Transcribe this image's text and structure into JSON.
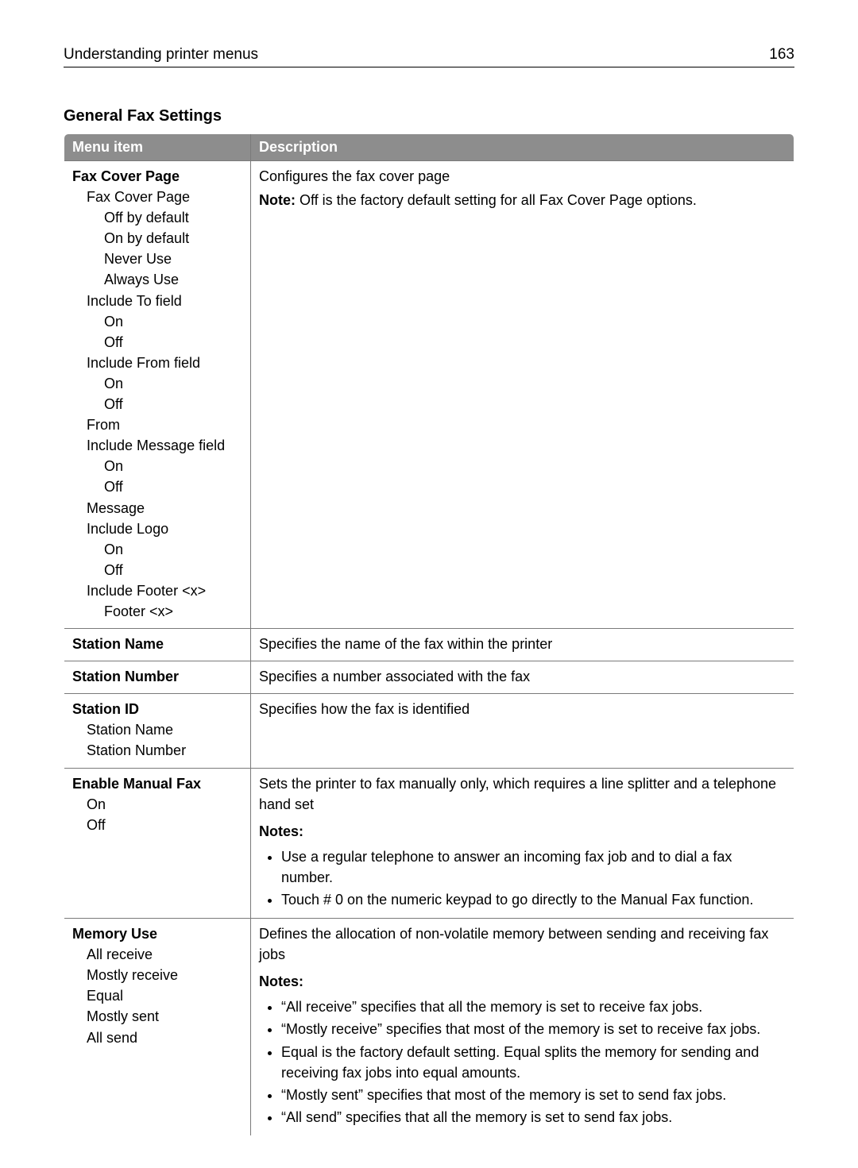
{
  "header": {
    "title": "Understanding printer menus",
    "page_number": "163"
  },
  "section_title": "General Fax Settings",
  "table": {
    "col_menu": "Menu item",
    "col_desc": "Description",
    "rows": [
      {
        "menu": {
          "title": "Fax Cover Page",
          "lines": [
            {
              "t": "Fax Cover Page",
              "i": 1
            },
            {
              "t": "Off by default",
              "i": 2
            },
            {
              "t": "On by default",
              "i": 2
            },
            {
              "t": "Never Use",
              "i": 2
            },
            {
              "t": "Always Use",
              "i": 2
            },
            {
              "t": "Include To field",
              "i": 1
            },
            {
              "t": "On",
              "i": 2
            },
            {
              "t": "Off",
              "i": 2
            },
            {
              "t": "Include From field",
              "i": 1
            },
            {
              "t": "On",
              "i": 2
            },
            {
              "t": "Off",
              "i": 2
            },
            {
              "t": "From",
              "i": 1
            },
            {
              "t": "Include Message field",
              "i": 1
            },
            {
              "t": "On",
              "i": 2
            },
            {
              "t": "Off",
              "i": 2
            },
            {
              "t": "Message",
              "i": 1
            },
            {
              "t": "Include Logo",
              "i": 1
            },
            {
              "t": "On",
              "i": 2
            },
            {
              "t": "Off",
              "i": 2
            },
            {
              "t": "Include Footer <x>",
              "i": 1
            },
            {
              "t": "Footer <x>",
              "i": 2
            }
          ]
        },
        "desc": {
          "lead": "Configures the fax cover page",
          "note_label": "Note:",
          "note_text": " Off is the factory default setting for all Fax Cover Page options."
        }
      },
      {
        "menu": {
          "title": "Station Name",
          "lines": []
        },
        "desc": {
          "lead": "Specifies the name of the fax within the printer"
        }
      },
      {
        "menu": {
          "title": "Station Number",
          "lines": []
        },
        "desc": {
          "lead": "Specifies a number associated with the fax"
        }
      },
      {
        "menu": {
          "title": "Station ID",
          "lines": [
            {
              "t": "Station Name",
              "i": 1
            },
            {
              "t": "Station Number",
              "i": 1
            }
          ]
        },
        "desc": {
          "lead": "Specifies how the fax is identified"
        }
      },
      {
        "menu": {
          "title": "Enable Manual Fax",
          "lines": [
            {
              "t": "On",
              "i": 1
            },
            {
              "t": "Off",
              "i": 1
            }
          ]
        },
        "desc": {
          "lead": "Sets the printer to fax manually only, which requires a line splitter and a telephone hand set",
          "notes_label": "Notes:",
          "notes": [
            "Use a regular telephone to answer an incoming fax job and to dial a fax number.",
            "Touch # 0 on the numeric keypad to go directly to the Manual Fax function."
          ]
        }
      },
      {
        "menu": {
          "title": "Memory Use",
          "lines": [
            {
              "t": "All receive",
              "i": 1
            },
            {
              "t": "Mostly receive",
              "i": 1
            },
            {
              "t": "Equal",
              "i": 1
            },
            {
              "t": "Mostly sent",
              "i": 1
            },
            {
              "t": "All send",
              "i": 1
            }
          ]
        },
        "desc": {
          "lead": "Defines the allocation of non-volatile memory between sending and receiving fax jobs",
          "notes_label": "Notes:",
          "notes": [
            "“All receive” specifies that all the memory is set to receive fax jobs.",
            "“Mostly receive” specifies that most of the memory is set to receive fax jobs.",
            "Equal is the factory default setting. Equal splits the memory for sending and receiving fax jobs into equal amounts.",
            "“Mostly sent” specifies that most of the memory is set to send fax jobs.",
            "“All send” specifies that all the memory is set to send fax jobs."
          ]
        }
      }
    ]
  }
}
